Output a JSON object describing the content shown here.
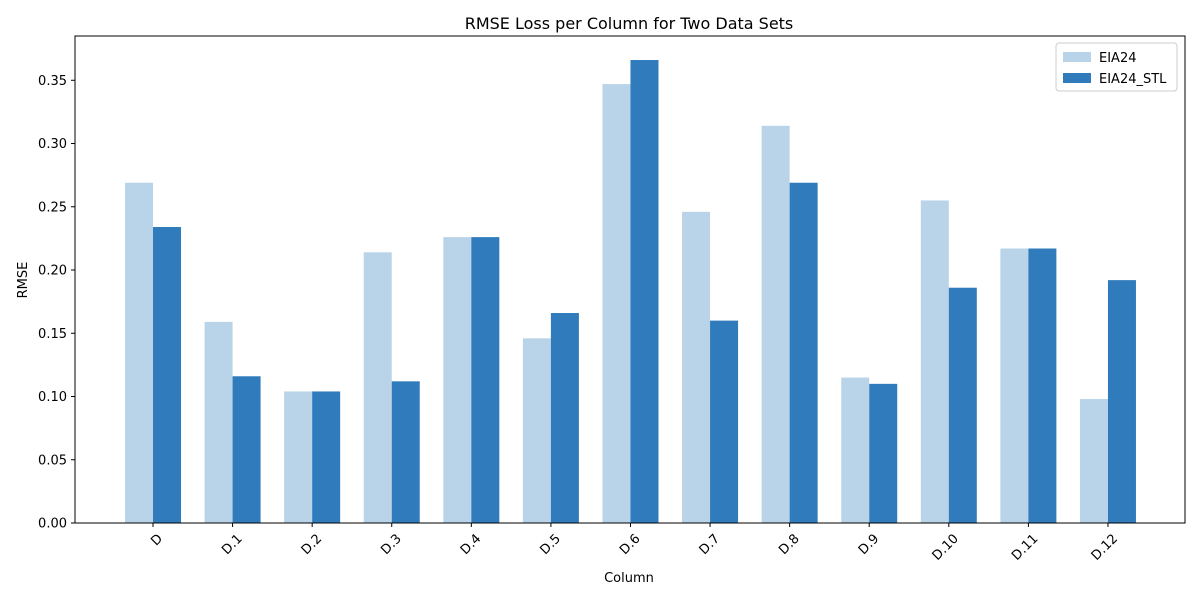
{
  "chart_data": {
    "type": "bar",
    "title": "RMSE Loss per Column for Two Data Sets",
    "xlabel": "Column",
    "ylabel": "RMSE",
    "categories": [
      "D",
      "D.1",
      "D.2",
      "D.3",
      "D.4",
      "D.5",
      "D.6",
      "D.7",
      "D.8",
      "D.9",
      "D.10",
      "D.11",
      "D.12"
    ],
    "series": [
      {
        "name": "EIA24",
        "color": "#b9d4e9",
        "values": [
          0.269,
          0.159,
          0.104,
          0.214,
          0.226,
          0.146,
          0.347,
          0.246,
          0.314,
          0.115,
          0.255,
          0.217,
          0.098
        ]
      },
      {
        "name": "EIA24_STL",
        "color": "#2f7bbc",
        "values": [
          0.234,
          0.116,
          0.104,
          0.112,
          0.226,
          0.166,
          0.366,
          0.16,
          0.269,
          0.11,
          0.186,
          0.217,
          0.192
        ]
      }
    ],
    "ylim": [
      0,
      0.385
    ],
    "yticks": [
      "0.00",
      "0.05",
      "0.10",
      "0.15",
      "0.20",
      "0.25",
      "0.30",
      "0.35"
    ],
    "x_tick_rotation": 45,
    "legend_position": "top-right",
    "grid": false
  }
}
